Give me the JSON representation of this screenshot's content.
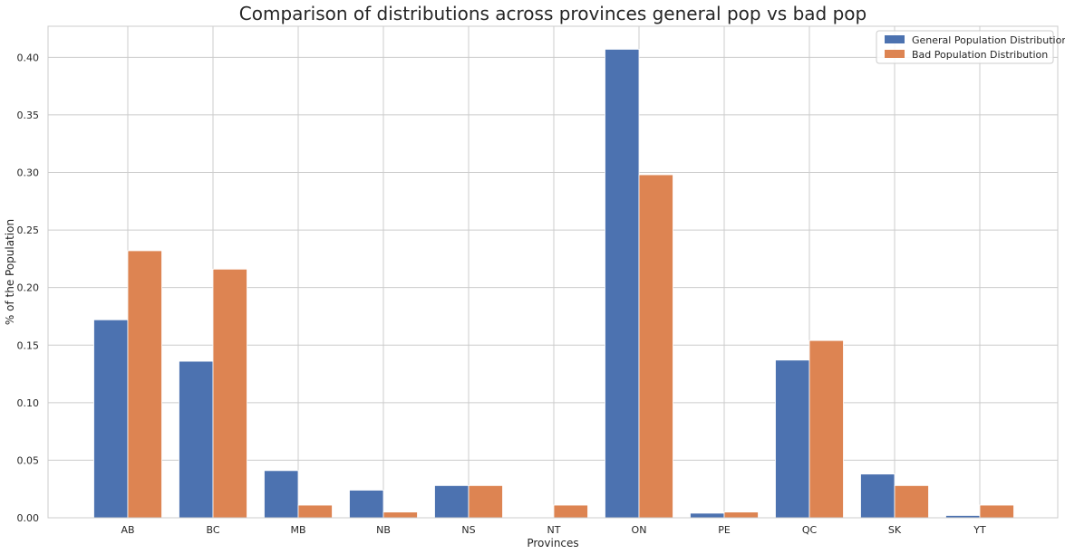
{
  "chart_data": {
    "type": "bar",
    "title": "Comparison of distributions across provinces general pop vs bad pop",
    "xlabel": "Provinces",
    "ylabel": "% of the Population",
    "categories": [
      "AB",
      "BC",
      "MB",
      "NB",
      "NS",
      "NT",
      "ON",
      "PE",
      "QC",
      "SK",
      "YT"
    ],
    "series": [
      {
        "name": "General Population Distribution",
        "color": "#4c72b0",
        "values": [
          0.172,
          0.136,
          0.041,
          0.024,
          0.028,
          0.0,
          0.407,
          0.004,
          0.137,
          0.038,
          0.002
        ]
      },
      {
        "name": "Bad Population Distribution",
        "color": "#dd8452",
        "values": [
          0.232,
          0.216,
          0.011,
          0.005,
          0.028,
          0.011,
          0.298,
          0.005,
          0.154,
          0.028,
          0.011
        ]
      }
    ],
    "yticks": [
      "0.00",
      "0.05",
      "0.10",
      "0.15",
      "0.20",
      "0.25",
      "0.30",
      "0.35",
      "0.40"
    ],
    "ylim": [
      0,
      0.427
    ],
    "grid": true,
    "legend_position": "top-right"
  }
}
